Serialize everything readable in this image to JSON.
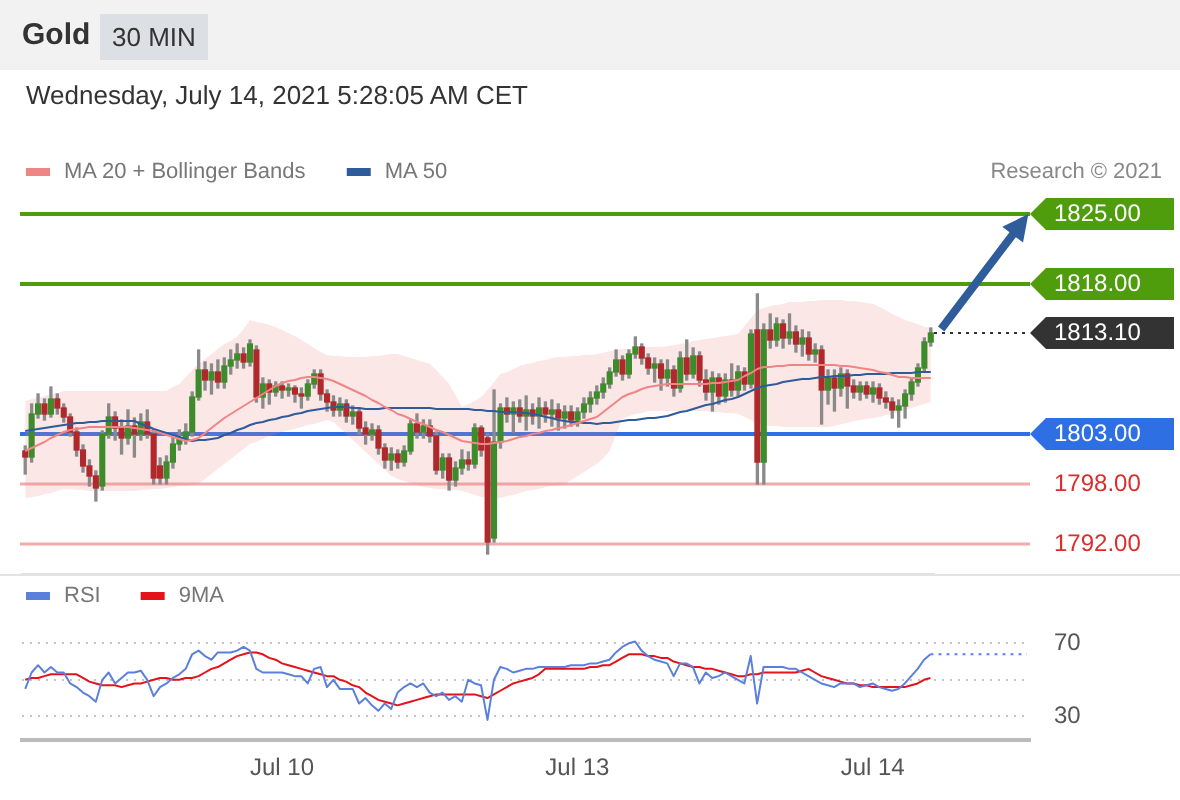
{
  "chart_data": [
    {
      "type": "candlestick",
      "title": "Gold",
      "subtitle": "Wednesday, July 14, 2021 5:28:05 AM CET",
      "annotations": [
        "30 MIN",
        "Research © 2021"
      ],
      "categories": [
        null,
        null,
        null,
        null,
        null,
        null,
        null,
        null,
        null,
        null,
        null,
        null,
        null,
        null,
        null,
        null,
        null,
        null,
        null,
        null,
        null,
        null,
        null,
        null,
        null,
        null,
        null,
        null,
        null,
        null,
        null,
        null,
        null,
        null,
        null,
        null,
        null,
        null,
        null,
        null,
        null,
        null,
        null,
        null,
        null,
        null,
        null,
        null,
        null,
        null,
        null,
        null,
        null,
        null,
        null,
        null,
        null,
        null,
        null,
        null,
        null,
        null,
        null,
        null,
        null,
        null,
        null,
        null,
        null,
        null,
        null,
        null,
        null,
        null,
        null,
        null,
        null,
        null,
        null,
        null,
        null,
        null,
        null,
        null,
        null,
        null,
        null,
        null,
        null,
        null,
        null,
        null,
        null,
        null,
        null,
        null,
        null,
        null,
        null,
        null,
        null,
        null,
        null,
        null,
        null,
        null,
        null,
        null,
        null,
        null,
        null,
        null,
        null,
        null,
        null,
        null,
        null,
        null,
        null,
        null,
        null,
        null,
        null,
        null,
        null,
        null,
        null,
        null,
        null,
        null,
        null,
        null,
        null,
        null,
        null,
        null,
        null,
        null,
        null,
        null,
        null,
        null
      ],
      "ohlc": [
        [
          1801.3,
          1801.8,
          1799.0,
          1800.7
        ],
        [
          1800.7,
          1806.0,
          1800.2,
          1805.0
        ],
        [
          1805.0,
          1807.0,
          1804.6,
          1806.0
        ],
        [
          1806.0,
          1806.5,
          1804.4,
          1805.0
        ],
        [
          1805.0,
          1807.7,
          1804.7,
          1806.5
        ],
        [
          1806.5,
          1807.0,
          1805.0,
          1805.6
        ],
        [
          1805.6,
          1806.0,
          1804.2,
          1804.7
        ],
        [
          1804.7,
          1805.0,
          1802.8,
          1803.2
        ],
        [
          1803.2,
          1803.6,
          1800.8,
          1801.4
        ],
        [
          1801.4,
          1801.9,
          1799.2,
          1799.8
        ],
        [
          1799.8,
          1800.4,
          1797.8,
          1798.8
        ],
        [
          1798.8,
          1799.3,
          1796.3,
          1797.6
        ],
        [
          1797.8,
          1803.3,
          1797.4,
          1803.0
        ],
        [
          1803.0,
          1806.0,
          1802.6,
          1804.7
        ],
        [
          1804.7,
          1805.2,
          1802.4,
          1803.6
        ],
        [
          1803.6,
          1804.4,
          1801.0,
          1802.6
        ],
        [
          1802.6,
          1805.4,
          1802.0,
          1803.8
        ],
        [
          1803.8,
          1804.6,
          1800.7,
          1803.0
        ],
        [
          1803.0,
          1805.0,
          1802.4,
          1804.2
        ],
        [
          1804.2,
          1805.4,
          1802.6,
          1803.0
        ],
        [
          1803.0,
          1803.4,
          1798.0,
          1798.6
        ],
        [
          1799.8,
          1800.6,
          1798.0,
          1798.6
        ],
        [
          1798.6,
          1800.8,
          1798.0,
          1800.2
        ],
        [
          1800.2,
          1802.6,
          1799.6,
          1802.0
        ],
        [
          1802.0,
          1803.4,
          1801.4,
          1802.6
        ],
        [
          1802.6,
          1804.0,
          1802.0,
          1803.2
        ],
        [
          1803.2,
          1807.2,
          1802.8,
          1806.7
        ],
        [
          1806.7,
          1811.4,
          1806.4,
          1809.4
        ],
        [
          1809.4,
          1810.2,
          1807.4,
          1808.4
        ],
        [
          1808.4,
          1810.0,
          1807.0,
          1809.2
        ],
        [
          1809.2,
          1810.4,
          1807.6,
          1808.2
        ],
        [
          1808.2,
          1810.6,
          1807.6,
          1809.8
        ],
        [
          1809.8,
          1811.4,
          1809.0,
          1810.4
        ],
        [
          1810.4,
          1812.0,
          1809.6,
          1811.0
        ],
        [
          1811.0,
          1811.6,
          1809.6,
          1810.2
        ],
        [
          1810.2,
          1812.4,
          1809.8,
          1812.0
        ],
        [
          1811.4,
          1811.8,
          1806.2,
          1806.7
        ],
        [
          1806.7,
          1808.6,
          1805.6,
          1808.0
        ],
        [
          1808.0,
          1808.4,
          1806.0,
          1807.2
        ],
        [
          1807.2,
          1808.2,
          1806.8,
          1807.8
        ],
        [
          1807.8,
          1808.2,
          1806.6,
          1807.4
        ],
        [
          1807.4,
          1808.0,
          1806.8,
          1807.6
        ],
        [
          1807.6,
          1807.8,
          1806.2,
          1807.0
        ],
        [
          1807.0,
          1807.6,
          1805.6,
          1806.8
        ],
        [
          1806.8,
          1808.4,
          1806.4,
          1808.0
        ],
        [
          1808.0,
          1809.4,
          1807.6,
          1809.0
        ],
        [
          1809.0,
          1809.4,
          1806.4,
          1807.0
        ],
        [
          1807.0,
          1807.4,
          1805.3,
          1806.2
        ],
        [
          1806.2,
          1806.8,
          1804.8,
          1805.4
        ],
        [
          1805.4,
          1806.6,
          1804.8,
          1806.0
        ],
        [
          1806.0,
          1806.4,
          1804.2,
          1804.8
        ],
        [
          1804.8,
          1805.8,
          1804.0,
          1805.2
        ],
        [
          1805.2,
          1805.6,
          1803.0,
          1803.6
        ],
        [
          1803.6,
          1804.2,
          1802.0,
          1803.0
        ],
        [
          1803.0,
          1804.0,
          1802.4,
          1803.4
        ],
        [
          1803.4,
          1803.8,
          1801.0,
          1801.6
        ],
        [
          1801.6,
          1802.0,
          1799.6,
          1800.4
        ],
        [
          1800.4,
          1801.6,
          1799.4,
          1801.0
        ],
        [
          1801.0,
          1801.4,
          1799.6,
          1800.2
        ],
        [
          1800.2,
          1801.8,
          1799.8,
          1801.3
        ],
        [
          1801.3,
          1804.4,
          1801.0,
          1804.0
        ],
        [
          1804.0,
          1805.0,
          1802.6,
          1803.2
        ],
        [
          1803.2,
          1804.4,
          1802.6,
          1803.8
        ],
        [
          1803.8,
          1804.4,
          1802.2,
          1802.8
        ],
        [
          1802.8,
          1803.2,
          1799.0,
          1799.4
        ],
        [
          1799.4,
          1801.0,
          1798.6,
          1800.6
        ],
        [
          1800.6,
          1801.0,
          1797.4,
          1798.4
        ],
        [
          1798.4,
          1800.2,
          1797.8,
          1799.6
        ],
        [
          1799.6,
          1801.4,
          1799.0,
          1800.4
        ],
        [
          1800.4,
          1801.2,
          1799.4,
          1800.0
        ],
        [
          1800.0,
          1804.0,
          1799.6,
          1803.6
        ],
        [
          1803.6,
          1803.8,
          1800.8,
          1801.4
        ],
        [
          1802.6,
          1803.0,
          1791.0,
          1792.2
        ],
        [
          1792.6,
          1807.4,
          1792.2,
          1802.2
        ],
        [
          1802.2,
          1806.0,
          1801.6,
          1805.6
        ],
        [
          1805.6,
          1806.6,
          1804.2,
          1805.0
        ],
        [
          1805.0,
          1806.2,
          1803.2,
          1805.6
        ],
        [
          1805.6,
          1806.4,
          1804.2,
          1804.8
        ],
        [
          1804.8,
          1806.8,
          1803.4,
          1805.4
        ],
        [
          1805.4,
          1806.0,
          1804.0,
          1804.8
        ],
        [
          1804.8,
          1806.6,
          1803.6,
          1805.6
        ],
        [
          1805.6,
          1806.2,
          1804.2,
          1805.0
        ],
        [
          1805.0,
          1806.4,
          1803.8,
          1805.4
        ],
        [
          1805.4,
          1806.0,
          1803.4,
          1804.6
        ],
        [
          1804.6,
          1805.8,
          1803.6,
          1805.2
        ],
        [
          1805.2,
          1805.8,
          1803.8,
          1804.4
        ],
        [
          1804.4,
          1805.6,
          1803.8,
          1805.2
        ],
        [
          1805.2,
          1806.6,
          1804.6,
          1806.0
        ],
        [
          1806.0,
          1807.2,
          1805.2,
          1806.6
        ],
        [
          1806.6,
          1807.8,
          1806.0,
          1807.2
        ],
        [
          1807.2,
          1808.6,
          1806.6,
          1808.0
        ],
        [
          1808.0,
          1809.6,
          1807.6,
          1809.2
        ],
        [
          1809.2,
          1811.4,
          1808.8,
          1810.4
        ],
        [
          1810.4,
          1810.8,
          1808.4,
          1809.0
        ],
        [
          1809.0,
          1811.4,
          1808.6,
          1811.0
        ],
        [
          1811.0,
          1812.7,
          1810.6,
          1811.7
        ],
        [
          1811.7,
          1812.0,
          1810.0,
          1810.6
        ],
        [
          1810.6,
          1811.0,
          1809.0,
          1809.6
        ],
        [
          1809.6,
          1810.6,
          1808.2,
          1810.0
        ],
        [
          1810.0,
          1810.4,
          1807.4,
          1808.6
        ],
        [
          1808.6,
          1810.4,
          1807.8,
          1809.4
        ],
        [
          1809.4,
          1809.8,
          1806.8,
          1807.6
        ],
        [
          1807.6,
          1811.2,
          1807.2,
          1810.6
        ],
        [
          1810.6,
          1812.4,
          1808.4,
          1809.0
        ],
        [
          1809.0,
          1811.6,
          1808.6,
          1810.8
        ],
        [
          1810.8,
          1811.2,
          1807.8,
          1808.4
        ],
        [
          1808.4,
          1809.4,
          1806.4,
          1807.2
        ],
        [
          1807.2,
          1809.2,
          1805.3,
          1808.6
        ],
        [
          1808.6,
          1809.0,
          1806.0,
          1806.8
        ],
        [
          1806.8,
          1809.0,
          1806.2,
          1808.4
        ],
        [
          1808.4,
          1810.0,
          1806.8,
          1807.4
        ],
        [
          1807.4,
          1809.8,
          1806.8,
          1809.2
        ],
        [
          1809.2,
          1809.6,
          1807.4,
          1808.0
        ],
        [
          1808.0,
          1813.4,
          1807.6,
          1813.0
        ],
        [
          1813.4,
          1817.0,
          1798.0,
          1800.2
        ],
        [
          1800.2,
          1814.0,
          1798.0,
          1813.4
        ],
        [
          1813.4,
          1815.0,
          1811.6,
          1812.4
        ],
        [
          1812.4,
          1814.6,
          1811.8,
          1814.0
        ],
        [
          1814.0,
          1814.4,
          1811.6,
          1812.6
        ],
        [
          1812.6,
          1815.0,
          1812.0,
          1813.2
        ],
        [
          1813.2,
          1813.8,
          1811.2,
          1812.0
        ],
        [
          1812.0,
          1813.4,
          1810.8,
          1812.6
        ],
        [
          1812.6,
          1813.2,
          1810.4,
          1811.0
        ],
        [
          1811.0,
          1812.0,
          1810.2,
          1811.4
        ],
        [
          1811.4,
          1811.8,
          1804.0,
          1807.4
        ],
        [
          1807.4,
          1809.4,
          1806.0,
          1808.6
        ],
        [
          1808.6,
          1809.4,
          1805.3,
          1807.6
        ],
        [
          1807.6,
          1809.6,
          1806.8,
          1809.0
        ],
        [
          1809.0,
          1809.4,
          1805.6,
          1807.8
        ],
        [
          1807.8,
          1808.4,
          1806.6,
          1807.2
        ],
        [
          1807.2,
          1808.2,
          1806.4,
          1807.8
        ],
        [
          1807.8,
          1808.2,
          1806.6,
          1807.0
        ],
        [
          1807.0,
          1808.2,
          1806.2,
          1807.6
        ],
        [
          1807.6,
          1808.0,
          1806.0,
          1806.6
        ],
        [
          1806.6,
          1807.2,
          1805.6,
          1806.2
        ],
        [
          1806.2,
          1806.6,
          1804.6,
          1805.4
        ],
        [
          1805.4,
          1806.4,
          1803.7,
          1805.8
        ],
        [
          1805.8,
          1807.4,
          1804.6,
          1807.0
        ],
        [
          1807.0,
          1808.6,
          1806.4,
          1808.2
        ],
        [
          1808.2,
          1810.0,
          1807.8,
          1809.6
        ],
        [
          1809.6,
          1812.6,
          1809.2,
          1812.2
        ],
        [
          1812.2,
          1813.6,
          1811.8,
          1813.1
        ]
      ],
      "series": [
        {
          "name": "MA 20 + Bollinger Bands",
          "type": "line",
          "color": "#f08585",
          "values": [
            1801.3,
            1801.6,
            1801.9,
            1802.2,
            1802.6,
            1802.9,
            1803.2,
            1803.4,
            1803.5,
            1803.6,
            1803.7,
            1803.7,
            1803.7,
            1803.7,
            1803.7,
            1803.7,
            1803.7,
            1803.6,
            1803.5,
            1803.4,
            1803.3,
            1803.1,
            1802.9,
            1802.7,
            1802.5,
            1802.3,
            1802.4,
            1802.6,
            1803.1,
            1803.6,
            1804.1,
            1804.6,
            1805.0,
            1805.4,
            1805.8,
            1806.2,
            1806.6,
            1807.0,
            1807.4,
            1807.8,
            1808.1,
            1808.3,
            1808.4,
            1808.6,
            1808.7,
            1808.7,
            1808.6,
            1808.5,
            1808.3,
            1808.0,
            1807.7,
            1807.4,
            1807.1,
            1806.8,
            1806.4,
            1806.1,
            1805.7,
            1805.4,
            1805.0,
            1804.8,
            1804.5,
            1804.2,
            1804.0,
            1803.7,
            1803.4,
            1803.2,
            1802.9,
            1802.6,
            1802.3,
            1802.2,
            1802.1,
            1802.0,
            1802.0,
            1802.1,
            1802.2,
            1802.3,
            1802.5,
            1802.7,
            1802.8,
            1803.0,
            1803.1,
            1803.3,
            1803.4,
            1803.6,
            1803.7,
            1803.9,
            1804.1,
            1804.3,
            1804.5,
            1804.7,
            1805.2,
            1805.7,
            1806.2,
            1806.7,
            1807.0,
            1807.2,
            1807.5,
            1807.7,
            1807.8,
            1807.9,
            1808.0,
            1808.0,
            1808.0,
            1808.0,
            1808.0,
            1808.0,
            1808.0,
            1808.1,
            1808.1,
            1808.2,
            1808.3,
            1808.4,
            1808.8,
            1809.1,
            1809.5,
            1809.7,
            1809.7,
            1809.8,
            1809.8,
            1809.9,
            1809.9,
            1809.9,
            1809.9,
            1809.9,
            1809.9,
            1809.9,
            1809.9,
            1809.8,
            1809.8,
            1809.7,
            1809.6,
            1809.5,
            1809.4,
            1809.2,
            1809.1,
            1808.9,
            1808.7,
            1808.7,
            1808.6,
            1808.6,
            1808.6,
            1808.6
          ],
          "upper": [
            1806.3,
            1806.5,
            1806.6,
            1806.8,
            1807.0,
            1807.1,
            1807.3,
            1807.3,
            1807.3,
            1807.3,
            1807.3,
            1807.3,
            1807.3,
            1807.3,
            1807.3,
            1807.3,
            1807.3,
            1807.3,
            1807.3,
            1807.3,
            1807.3,
            1807.3,
            1807.3,
            1807.7,
            1808.0,
            1808.7,
            1809.4,
            1810.0,
            1810.5,
            1811.0,
            1811.5,
            1812.0,
            1812.3,
            1812.7,
            1813.5,
            1814.4,
            1814.2,
            1814.1,
            1813.9,
            1813.7,
            1813.4,
            1813.1,
            1812.8,
            1812.4,
            1812.0,
            1811.6,
            1811.2,
            1810.9,
            1810.8,
            1810.8,
            1810.7,
            1810.7,
            1810.7,
            1810.7,
            1810.8,
            1810.8,
            1810.9,
            1811.0,
            1811.0,
            1810.8,
            1810.6,
            1810.4,
            1810.2,
            1810.0,
            1809.4,
            1808.7,
            1808.0,
            1806.9,
            1805.7,
            1806.0,
            1806.3,
            1806.7,
            1807.4,
            1808.2,
            1809.0,
            1809.2,
            1809.5,
            1809.8,
            1810.0,
            1810.1,
            1810.3,
            1810.4,
            1810.6,
            1810.7,
            1810.7,
            1810.8,
            1810.8,
            1810.9,
            1810.9,
            1811.0,
            1811.1,
            1811.3,
            1811.4,
            1811.5,
            1811.5,
            1811.6,
            1811.7,
            1811.7,
            1811.7,
            1811.7,
            1811.8,
            1811.9,
            1812.0,
            1812.1,
            1812.3,
            1812.4,
            1812.5,
            1812.6,
            1812.7,
            1812.8,
            1812.9,
            1813.0,
            1813.8,
            1814.6,
            1815.4,
            1815.6,
            1815.8,
            1815.9,
            1816.0,
            1816.2,
            1816.2,
            1816.2,
            1816.3,
            1816.3,
            1816.4,
            1816.4,
            1816.4,
            1816.4,
            1816.3,
            1816.3,
            1816.2,
            1816.1,
            1816.0,
            1815.7,
            1815.4,
            1815.0,
            1814.7,
            1814.4,
            1814.2,
            1814.0,
            1813.7,
            1813.6
          ],
          "lower": [
            1796.6,
            1796.7,
            1796.8,
            1797.0,
            1797.1,
            1797.3,
            1797.5,
            1797.5,
            1797.4,
            1797.4,
            1797.3,
            1797.3,
            1797.3,
            1797.3,
            1797.3,
            1797.3,
            1797.3,
            1797.3,
            1797.4,
            1797.4,
            1797.5,
            1797.5,
            1797.6,
            1797.7,
            1797.8,
            1797.8,
            1797.9,
            1798.0,
            1798.5,
            1799.0,
            1799.5,
            1800.0,
            1800.5,
            1801.0,
            1801.5,
            1802.0,
            1802.2,
            1802.5,
            1802.8,
            1803.0,
            1803.2,
            1803.4,
            1803.5,
            1803.7,
            1803.9,
            1804.0,
            1804.2,
            1804.4,
            1804.2,
            1803.6,
            1803.0,
            1802.4,
            1801.8,
            1801.2,
            1800.6,
            1800.0,
            1799.4,
            1798.8,
            1798.5,
            1798.3,
            1798.1,
            1797.9,
            1797.7,
            1797.6,
            1797.5,
            1797.5,
            1797.4,
            1797.4,
            1797.3,
            1797.1,
            1796.9,
            1796.7,
            1796.6,
            1796.6,
            1796.6,
            1796.8,
            1796.9,
            1797.1,
            1797.3,
            1797.4,
            1797.5,
            1797.7,
            1797.8,
            1797.9,
            1798.0,
            1798.4,
            1798.8,
            1799.2,
            1799.6,
            1800.0,
            1800.6,
            1801.3,
            1803.0,
            1804.5,
            1804.8,
            1805.0,
            1805.1,
            1805.3,
            1805.3,
            1805.3,
            1805.3,
            1805.3,
            1805.3,
            1805.3,
            1805.3,
            1805.3,
            1805.3,
            1805.2,
            1805.2,
            1805.1,
            1805.1,
            1805.0,
            1804.7,
            1804.4,
            1804.0,
            1803.9,
            1803.8,
            1803.8,
            1803.7,
            1803.7,
            1803.7,
            1803.7,
            1803.7,
            1803.7,
            1803.7,
            1803.7,
            1803.8,
            1804.0,
            1804.1,
            1804.3,
            1804.4,
            1804.5,
            1804.6,
            1804.7,
            1804.9,
            1805.0,
            1805.2,
            1805.4,
            1805.6,
            1805.8,
            1806.0,
            1806.2
          ]
        },
        {
          "name": "MA 50",
          "type": "line",
          "color": "#2e5b9a",
          "values": [
            1803.3,
            1803.4,
            1803.5,
            1803.6,
            1803.7,
            1803.8,
            1803.9,
            1804.0,
            1804.1,
            1804.1,
            1804.2,
            1804.2,
            1804.3,
            1804.3,
            1804.3,
            1804.3,
            1804.3,
            1804.3,
            1804.0,
            1803.8,
            1803.5,
            1803.3,
            1803.1,
            1802.9,
            1802.7,
            1802.5,
            1802.3,
            1802.4,
            1802.4,
            1802.5,
            1802.6,
            1802.9,
            1803.1,
            1803.4,
            1803.6,
            1803.9,
            1804.1,
            1804.2,
            1804.4,
            1804.5,
            1804.7,
            1804.8,
            1805.0,
            1805.1,
            1805.3,
            1805.4,
            1805.5,
            1805.6,
            1805.7,
            1805.7,
            1805.7,
            1805.6,
            1805.6,
            1805.5,
            1805.5,
            1805.5,
            1805.6,
            1805.6,
            1805.6,
            1805.6,
            1805.6,
            1805.6,
            1805.6,
            1805.6,
            1805.5,
            1805.5,
            1805.5,
            1805.5,
            1805.5,
            1805.5,
            1805.4,
            1805.4,
            1805.3,
            1805.3,
            1805.2,
            1805.2,
            1805.2,
            1805.1,
            1805.1,
            1805.0,
            1804.9,
            1804.7,
            1804.6,
            1804.4,
            1804.3,
            1804.2,
            1804.2,
            1804.1,
            1804.1,
            1804.0,
            1804.1,
            1804.1,
            1804.2,
            1804.3,
            1804.4,
            1804.4,
            1804.5,
            1804.6,
            1804.6,
            1804.7,
            1804.8,
            1805.0,
            1805.2,
            1805.3,
            1805.5,
            1805.7,
            1805.9,
            1806.0,
            1806.2,
            1806.4,
            1806.5,
            1806.7,
            1807.0,
            1807.3,
            1807.6,
            1807.8,
            1807.9,
            1808.0,
            1808.2,
            1808.3,
            1808.4,
            1808.5,
            1808.5,
            1808.6,
            1808.7,
            1808.7,
            1808.8,
            1808.8,
            1808.8,
            1808.9,
            1808.9,
            1809.0,
            1809.0,
            1809.0,
            1809.0,
            1809.1,
            1809.1,
            1809.1,
            1809.1,
            1809.2,
            1809.2,
            1809.2
          ]
        }
      ],
      "ylim": [
        1789,
        1825
      ],
      "yticks": [
        {
          "value": 1792,
          "label": "1792.00"
        },
        {
          "value": 1798,
          "label": "1798.00"
        },
        {
          "value": 1803,
          "label": "1803.00"
        },
        {
          "value": 1813.1,
          "label": "1813.10"
        },
        {
          "value": 1818,
          "label": "1818.00"
        },
        {
          "value": 1825,
          "label": "1825.00"
        }
      ],
      "ref_lines": [
        {
          "axis": "y",
          "value": 1825,
          "color": "#4f9d0d"
        },
        {
          "axis": "y",
          "value": 1818,
          "color": "#4f9d0d"
        },
        {
          "axis": "y",
          "value": 1803,
          "color": "#2f6fe4"
        },
        {
          "axis": "y",
          "value": 1798,
          "color": "#dd2c2c"
        },
        {
          "axis": "y",
          "value": 1792,
          "color": "#dd2c2c"
        }
      ],
      "legend": "top left",
      "tick_labels": "y"
    },
    {
      "type": "line",
      "categories": [
        null,
        null,
        null,
        null,
        null,
        null,
        null,
        null,
        null,
        null,
        null,
        null,
        null,
        null,
        null,
        null,
        null,
        null,
        null,
        null,
        null,
        null,
        null,
        null,
        null,
        null,
        null,
        null,
        null,
        null,
        null,
        null,
        null,
        null,
        null,
        null,
        null,
        null,
        null,
        null,
        "Jul 10",
        null,
        null,
        null,
        null,
        null,
        null,
        null,
        null,
        null,
        null,
        null,
        null,
        null,
        null,
        null,
        null,
        null,
        null,
        null,
        null,
        null,
        null,
        null,
        null,
        null,
        null,
        null,
        null,
        null,
        null,
        null,
        null,
        null,
        null,
        null,
        null,
        null,
        null,
        null,
        null,
        null,
        null,
        null,
        null,
        null,
        "Jul 13",
        null,
        null,
        null,
        null,
        null,
        null,
        null,
        null,
        null,
        null,
        null,
        null,
        null,
        null,
        null,
        null,
        null,
        null,
        null,
        null,
        null,
        null,
        null,
        null,
        null,
        null,
        null,
        null,
        null,
        null,
        null,
        null,
        null,
        null,
        null,
        null,
        null,
        null,
        null,
        null,
        null,
        null,
        null,
        null,
        null,
        "Jul 14",
        null,
        null,
        null,
        null,
        null,
        null,
        null,
        null,
        null,
        null,
        null,
        null,
        null,
        null,
        null,
        null,
        null,
        null,
        null,
        null,
        null,
        null,
        null,
        null
      ],
      "series": [
        {
          "name": "RSI",
          "color": "#5b80dc",
          "values": [
            45,
            54,
            58,
            54,
            57,
            54,
            54,
            48,
            46,
            43,
            41,
            38,
            50,
            54,
            48,
            51,
            54,
            54,
            55,
            50,
            41,
            46,
            48,
            51,
            53,
            56,
            64,
            66,
            63,
            61,
            65,
            65,
            65,
            66,
            68,
            66,
            56,
            54,
            54,
            54,
            54,
            53,
            52,
            52,
            48,
            56,
            57,
            46,
            50,
            45,
            45,
            45,
            37,
            40,
            36,
            33,
            37,
            34,
            43,
            46,
            48,
            46,
            48,
            43,
            41,
            43,
            39,
            41,
            38,
            50,
            48,
            47,
            28,
            50,
            57,
            56,
            54,
            55,
            56,
            56,
            57,
            57,
            57,
            57,
            57,
            58,
            58,
            58,
            59,
            59,
            60,
            61,
            65,
            68,
            70,
            71,
            66,
            63,
            61,
            60,
            59,
            52,
            59,
            59,
            57,
            48,
            54,
            51,
            52,
            54,
            52,
            50,
            48,
            63,
            37,
            57,
            57,
            57,
            57,
            56,
            56,
            54,
            52,
            50,
            48,
            47,
            46,
            48,
            48,
            48,
            46,
            47,
            48,
            46,
            45,
            44,
            45,
            48,
            52,
            56,
            61,
            64,
            null,
            null,
            null,
            null,
            null,
            null,
            null,
            null,
            null,
            null,
            null,
            null,
            null,
            null,
            null
          ]
        },
        {
          "name": "9MA",
          "color": "#e3121b",
          "values": [
            50,
            51,
            51,
            52,
            53,
            53,
            53,
            53,
            53,
            51,
            49,
            48,
            47,
            47,
            47,
            46,
            47,
            48,
            48,
            49,
            50,
            51,
            51,
            50,
            50,
            51,
            51,
            52,
            54,
            56,
            57,
            59,
            61,
            63,
            64,
            65,
            65,
            64,
            62,
            61,
            59,
            58,
            57,
            56,
            55,
            54,
            53,
            52,
            52,
            50,
            49,
            47,
            46,
            43,
            41,
            39,
            38,
            37,
            36,
            37,
            38,
            39,
            40,
            41,
            42,
            42,
            42,
            42,
            42,
            42,
            42,
            41,
            40,
            42,
            44,
            46,
            48,
            49,
            50,
            51,
            53,
            56,
            56,
            56,
            56,
            56,
            56,
            56,
            57,
            57,
            58,
            58,
            60,
            62,
            64,
            64,
            64,
            63,
            63,
            62,
            62,
            60,
            59,
            58,
            57,
            57,
            56,
            56,
            55,
            54,
            53,
            52,
            52,
            53,
            53,
            54,
            54,
            54,
            54,
            54,
            54,
            55,
            56,
            54,
            52,
            51,
            50,
            49,
            48,
            48,
            47,
            47,
            46,
            46,
            46,
            46,
            46,
            46,
            47,
            48,
            50,
            51,
            null,
            null,
            null,
            null,
            null,
            null,
            null,
            null,
            null,
            null,
            null,
            null,
            null,
            null,
            null
          ]
        },
        {
          "type": "line",
          "color": "#5b80dc",
          "line_style": "dotted",
          "values": [
            null,
            null,
            null,
            null,
            null,
            null,
            null,
            null,
            null,
            null,
            null,
            null,
            null,
            null,
            null,
            null,
            null,
            null,
            null,
            null,
            null,
            null,
            null,
            null,
            null,
            null,
            null,
            null,
            null,
            null,
            null,
            null,
            null,
            null,
            null,
            null,
            null,
            null,
            null,
            null,
            null,
            null,
            null,
            null,
            null,
            null,
            null,
            null,
            null,
            null,
            null,
            null,
            null,
            null,
            null,
            null,
            null,
            null,
            null,
            null,
            null,
            null,
            null,
            null,
            null,
            null,
            null,
            null,
            null,
            null,
            null,
            null,
            null,
            null,
            null,
            null,
            null,
            null,
            null,
            null,
            null,
            null,
            null,
            null,
            null,
            null,
            null,
            null,
            null,
            null,
            null,
            null,
            null,
            null,
            null,
            null,
            null,
            null,
            null,
            null,
            null,
            null,
            null,
            null,
            null,
            null,
            null,
            null,
            null,
            null,
            null,
            null,
            null,
            null,
            null,
            null,
            null,
            null,
            null,
            null,
            null,
            null,
            null,
            null,
            null,
            null,
            null,
            null,
            null,
            null,
            null,
            null,
            null,
            null,
            null,
            null,
            null,
            null,
            null,
            null,
            null,
            64,
            64,
            64,
            64,
            64,
            64,
            64,
            64,
            64,
            64,
            64,
            64,
            64,
            64,
            64,
            64
          ]
        }
      ],
      "ylim": [
        17,
        108
      ],
      "yticks": [
        30,
        {
          "value": 50,
          "label": null
        },
        70
      ],
      "grid": "y",
      "legend": "top left"
    }
  ]
}
